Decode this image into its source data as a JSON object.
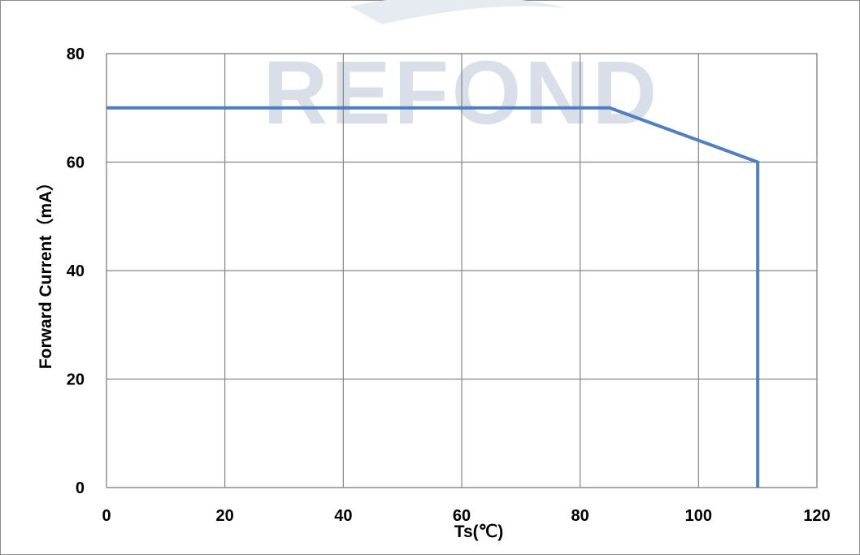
{
  "chart_data": {
    "type": "line",
    "title": "",
    "xlabel": "Ts(℃)",
    "ylabel": "Forward Current（mA）",
    "xlim": [
      0,
      120
    ],
    "ylim": [
      0,
      80
    ],
    "x_ticks": [
      0,
      20,
      40,
      60,
      80,
      100,
      120
    ],
    "y_ticks": [
      0,
      20,
      40,
      60,
      80
    ],
    "grid": true,
    "legend": "none",
    "series": [
      {
        "color": "#4f7fbd",
        "points": [
          [
            0,
            70
          ],
          [
            85,
            70
          ],
          [
            110,
            60
          ],
          [
            110,
            0
          ]
        ]
      }
    ]
  },
  "watermark": {
    "text": "REFOND",
    "color": "#d9dee8"
  }
}
